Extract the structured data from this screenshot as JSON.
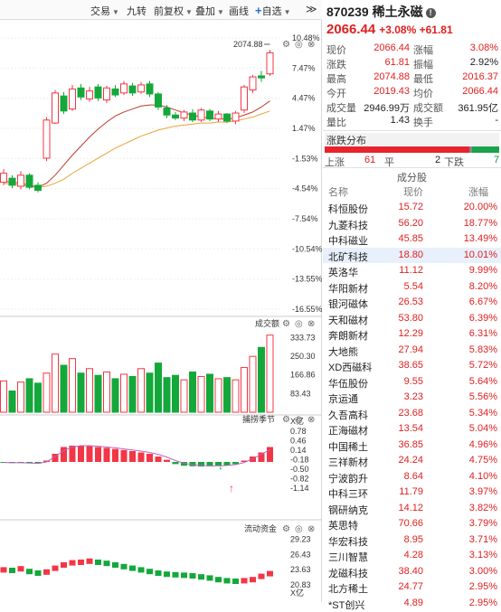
{
  "toolbar": {
    "items": [
      "交易",
      "九转",
      "前复权",
      "叠加",
      "画线",
      "自选"
    ],
    "more": "≫"
  },
  "chart": {
    "price_labels": [
      "10.48%",
      "7.47%",
      "4.47%",
      "1.47%",
      "-1.53%",
      "-4.54%",
      "-7.54%",
      "-10.54%",
      "-13.55%",
      "-16.55%"
    ],
    "max_marker": "2074.88",
    "volume_title": "成交额",
    "volume_labels": [
      "333.73",
      "250.30",
      "166.86",
      "83.43",
      "X亿"
    ],
    "cycle_title": "捕捞季节",
    "cycle_labels": [
      "0.78",
      "0.46",
      "0.14",
      "-0.18",
      "-0.50",
      "-0.82",
      "-1.14"
    ],
    "flow_title": "流动资金",
    "flow_labels": [
      "29.23",
      "26.43",
      "23.63",
      "20.83",
      "X亿"
    ]
  },
  "chart_data": [
    {
      "type": "candlestick",
      "title": "",
      "ylabel": "%",
      "ylim": [
        -16.55,
        10.48
      ],
      "ticks": [
        10.48,
        7.47,
        4.47,
        1.47,
        -1.53,
        -4.54,
        -7.54,
        -10.54,
        -13.55,
        -16.55
      ],
      "candles": [
        {
          "o": -3.9,
          "c": -3.0,
          "h": -2.6,
          "l": -4.2
        },
        {
          "o": -3.5,
          "c": -4.2,
          "h": -3.2,
          "l": -4.5
        },
        {
          "o": -4.3,
          "c": -3.2,
          "h": -2.8,
          "l": -4.6
        },
        {
          "o": -3.2,
          "c": -4.4,
          "h": -3.0,
          "l": -4.6
        },
        {
          "o": -4.2,
          "c": -4.7,
          "h": -3.9,
          "l": -4.9
        },
        {
          "o": -1.5,
          "c": 2.3,
          "h": 2.6,
          "l": -1.8
        },
        {
          "o": 2.0,
          "c": 5.0,
          "h": 5.3,
          "l": 1.9
        },
        {
          "o": 4.7,
          "c": 3.2,
          "h": 5.1,
          "l": 2.9
        },
        {
          "o": 3.4,
          "c": 5.4,
          "h": 5.8,
          "l": 3.2
        },
        {
          "o": 5.5,
          "c": 4.6,
          "h": 5.9,
          "l": 4.3
        },
        {
          "o": 4.4,
          "c": 5.2,
          "h": 5.6,
          "l": 4.1
        },
        {
          "o": 5.6,
          "c": 4.5,
          "h": 5.9,
          "l": 4.2
        },
        {
          "o": 4.3,
          "c": 5.5,
          "h": 5.7,
          "l": 4.0
        },
        {
          "o": 5.4,
          "c": 4.8,
          "h": 5.8,
          "l": 4.6
        },
        {
          "o": 5.0,
          "c": 5.9,
          "h": 6.2,
          "l": 4.8
        },
        {
          "o": 5.7,
          "c": 5.0,
          "h": 6.0,
          "l": 4.7
        },
        {
          "o": 5.1,
          "c": 5.8,
          "h": 6.1,
          "l": 4.9
        },
        {
          "o": 5.9,
          "c": 4.9,
          "h": 6.2,
          "l": 4.6
        },
        {
          "o": 4.9,
          "c": 3.6,
          "h": 5.1,
          "l": 3.3
        },
        {
          "o": 3.5,
          "c": 2.8,
          "h": 3.8,
          "l": 2.5
        },
        {
          "o": 2.8,
          "c": 2.5,
          "h": 3.1,
          "l": 2.3
        },
        {
          "o": 2.5,
          "c": 3.1,
          "h": 3.3,
          "l": 2.2
        },
        {
          "o": 3.0,
          "c": 2.3,
          "h": 3.4,
          "l": 2.1
        },
        {
          "o": 2.3,
          "c": 3.3,
          "h": 3.5,
          "l": 2.1
        },
        {
          "o": 3.2,
          "c": 2.4,
          "h": 3.4,
          "l": 2.2
        },
        {
          "o": 2.4,
          "c": 2.9,
          "h": 3.2,
          "l": 2.1
        },
        {
          "o": 2.9,
          "c": 2.2,
          "h": 3.0,
          "l": 2.0
        },
        {
          "o": 2.2,
          "c": 3.0,
          "h": 3.2,
          "l": 1.9
        },
        {
          "o": 3.3,
          "c": 5.6,
          "h": 5.8,
          "l": 3.0
        },
        {
          "o": 5.3,
          "c": 6.6,
          "h": 6.8,
          "l": 5.0
        },
        {
          "o": 6.7,
          "c": 6.5,
          "h": 7.2,
          "l": 6.1
        },
        {
          "o": 6.9,
          "c": 9.0,
          "h": 9.3,
          "l": 6.7
        }
      ],
      "ma_slow": [
        -4.0,
        -4.1,
        -4.2,
        -4.3,
        -4.4,
        -4.3,
        -4.0,
        -3.6,
        -3.0,
        -2.5,
        -2.0,
        -1.5,
        -1.0,
        -0.5,
        -0.1,
        0.3,
        0.7,
        1.0,
        1.3,
        1.5,
        1.7,
        1.8,
        1.9,
        2.0,
        2.0,
        2.1,
        2.1,
        2.2,
        2.4,
        2.6,
        2.9,
        3.2
      ],
      "ma_fast": [
        -3.8,
        -3.9,
        -4.0,
        -4.2,
        -4.4,
        -4.0,
        -3.2,
        -2.2,
        -1.2,
        -0.3,
        0.6,
        1.4,
        2.1,
        2.7,
        3.1,
        3.4,
        3.7,
        3.8,
        3.8,
        3.6,
        3.3,
        3.0,
        2.8,
        2.6,
        2.5,
        2.4,
        2.4,
        2.5,
        2.8,
        3.1,
        3.6,
        4.2
      ]
    },
    {
      "type": "bar",
      "title": "成交额",
      "ylabel": "X亿",
      "ylim": [
        0,
        360
      ],
      "ticks": [
        333.73,
        250.3,
        166.86,
        83.43
      ],
      "values": [
        140,
        95,
        135,
        150,
        130,
        175,
        260,
        210,
        240,
        175,
        195,
        165,
        180,
        150,
        170,
        160,
        195,
        175,
        220,
        155,
        165,
        145,
        180,
        160,
        170,
        150,
        155,
        145,
        200,
        250,
        290,
        345
      ],
      "up": [
        1,
        0,
        1,
        0,
        0,
        1,
        1,
        0,
        1,
        0,
        1,
        0,
        1,
        0,
        1,
        0,
        1,
        0,
        0,
        0,
        0,
        1,
        0,
        1,
        0,
        1,
        0,
        1,
        1,
        1,
        0,
        1
      ]
    },
    {
      "type": "bar",
      "title": "捕捞季节",
      "ylim": [
        -1.14,
        0.9
      ],
      "ticks": [
        0.78,
        0.46,
        0.14,
        -0.18,
        -0.5,
        -0.82,
        -1.14
      ],
      "values": [
        -0.02,
        -0.04,
        -0.03,
        -0.05,
        -0.06,
        0.05,
        0.3,
        0.55,
        0.6,
        0.6,
        0.58,
        0.55,
        0.52,
        0.48,
        0.44,
        0.4,
        0.35,
        0.3,
        0.2,
        0.08,
        -0.08,
        -0.14,
        -0.16,
        -0.17,
        -0.16,
        -0.15,
        -0.13,
        -0.08,
        0.05,
        0.2,
        0.35,
        0.55
      ],
      "line": [
        -0.02,
        -0.03,
        -0.03,
        -0.04,
        -0.05,
        0.0,
        0.2,
        0.42,
        0.55,
        0.6,
        0.6,
        0.58,
        0.55,
        0.52,
        0.48,
        0.44,
        0.4,
        0.35,
        0.28,
        0.18,
        0.05,
        -0.05,
        -0.1,
        -0.13,
        -0.14,
        -0.14,
        -0.13,
        -0.1,
        -0.02,
        0.12,
        0.28,
        0.45
      ]
    },
    {
      "type": "bar",
      "title": "流动资金",
      "ylabel": "X亿",
      "ylim": [
        20.0,
        30.0
      ],
      "ticks": [
        29.23,
        26.43,
        23.63,
        20.83
      ],
      "values": [
        23.6,
        23.5,
        23.8,
        23.3,
        23.0,
        23.2,
        23.9,
        24.5,
        24.9,
        25.0,
        25.2,
        25.0,
        24.8,
        24.5,
        24.2,
        23.9,
        23.6,
        23.3,
        23.0,
        22.8,
        22.7,
        22.6,
        22.5,
        22.3,
        22.1,
        21.8,
        21.6,
        21.5,
        21.6,
        21.8,
        22.4,
        22.9
      ],
      "up": [
        1,
        0,
        1,
        0,
        0,
        1,
        1,
        1,
        1,
        1,
        1,
        0,
        0,
        0,
        0,
        0,
        0,
        0,
        0,
        0,
        0,
        0,
        0,
        0,
        0,
        0,
        0,
        0,
        1,
        1,
        1,
        1
      ]
    }
  ],
  "stock": {
    "code_name": "870239 稀土永磁",
    "price": "2066.44",
    "change": "+3.08% +61.81"
  },
  "quote": [
    {
      "l1": "现价",
      "v1": "2066.44",
      "c1": "red",
      "l2": "涨幅",
      "v2": "3.08%",
      "c2": "red"
    },
    {
      "l1": "涨跌",
      "v1": "61.81",
      "c1": "red",
      "l2": "振幅",
      "v2": "2.92%",
      "c2": "blk"
    },
    {
      "l1": "最高",
      "v1": "2074.88",
      "c1": "red",
      "l2": "最低",
      "v2": "2016.37",
      "c2": "red"
    },
    {
      "l1": "今开",
      "v1": "2019.43",
      "c1": "red",
      "l2": "均价",
      "v2": "2066.44",
      "c2": "red"
    },
    {
      "l1": "成交量",
      "v1": "2946.99万",
      "c1": "blk",
      "l2": "成交额",
      "v2": "361.95亿",
      "c2": "blk"
    },
    {
      "l1": "量比",
      "v1": "1.43",
      "c1": "blk",
      "l2": "换手",
      "v2": "-",
      "c2": "blk"
    }
  ],
  "distribution": {
    "title": "涨跌分布",
    "up_label": "上涨",
    "up_count": "61",
    "flat_label": "平",
    "flat_count": "2",
    "down_label": "下跌",
    "down_count": "7"
  },
  "constituents": {
    "title": "成分股",
    "headers": [
      "名称",
      "现价",
      "涨幅"
    ],
    "rows": [
      {
        "name": "科恒股份",
        "price": "15.72",
        "change": "20.00%"
      },
      {
        "name": "九菱科技",
        "price": "56.20",
        "change": "18.77%"
      },
      {
        "name": "中科磁业",
        "price": "45.85",
        "change": "13.49%"
      },
      {
        "name": "北矿科技",
        "price": "18.80",
        "change": "10.01%"
      },
      {
        "name": "英洛华",
        "price": "11.12",
        "change": "9.99%"
      },
      {
        "name": "华阳新材",
        "price": "5.54",
        "change": "8.20%"
      },
      {
        "name": "银河磁体",
        "price": "26.53",
        "change": "6.67%"
      },
      {
        "name": "天和磁材",
        "price": "53.80",
        "change": "6.39%"
      },
      {
        "name": "奔朗新材",
        "price": "12.29",
        "change": "6.31%"
      },
      {
        "name": "大地熊",
        "price": "27.94",
        "change": "5.83%"
      },
      {
        "name": "XD西磁科",
        "price": "38.65",
        "change": "5.72%"
      },
      {
        "name": "华伍股份",
        "price": "9.55",
        "change": "5.64%"
      },
      {
        "name": "京运通",
        "price": "3.23",
        "change": "5.56%"
      },
      {
        "name": "久吾高科",
        "price": "23.68",
        "change": "5.34%"
      },
      {
        "name": "正海磁材",
        "price": "13.54",
        "change": "5.04%"
      },
      {
        "name": "中国稀土",
        "price": "36.85",
        "change": "4.96%"
      },
      {
        "name": "三祥新材",
        "price": "24.24",
        "change": "4.75%"
      },
      {
        "name": "宁波韵升",
        "price": "8.64",
        "change": "4.10%"
      },
      {
        "name": "中科三环",
        "price": "11.79",
        "change": "3.97%"
      },
      {
        "name": "钢研纳克",
        "price": "14.12",
        "change": "3.82%"
      },
      {
        "name": "英思特",
        "price": "70.66",
        "change": "3.79%"
      },
      {
        "name": "华宏科技",
        "price": "8.95",
        "change": "3.71%"
      },
      {
        "name": "三川智慧",
        "price": "4.28",
        "change": "3.13%"
      },
      {
        "name": "龙磁科技",
        "price": "38.40",
        "change": "3.00%"
      },
      {
        "name": "北方稀土",
        "price": "24.77",
        "change": "2.95%"
      },
      {
        "name": "*ST创兴",
        "price": "4.89",
        "change": "2.95%"
      }
    ]
  },
  "colors": {
    "up": "#f23645",
    "down": "#14a83b",
    "ma_slow": "#e8a33a",
    "ma_fast": "#c0392b"
  }
}
